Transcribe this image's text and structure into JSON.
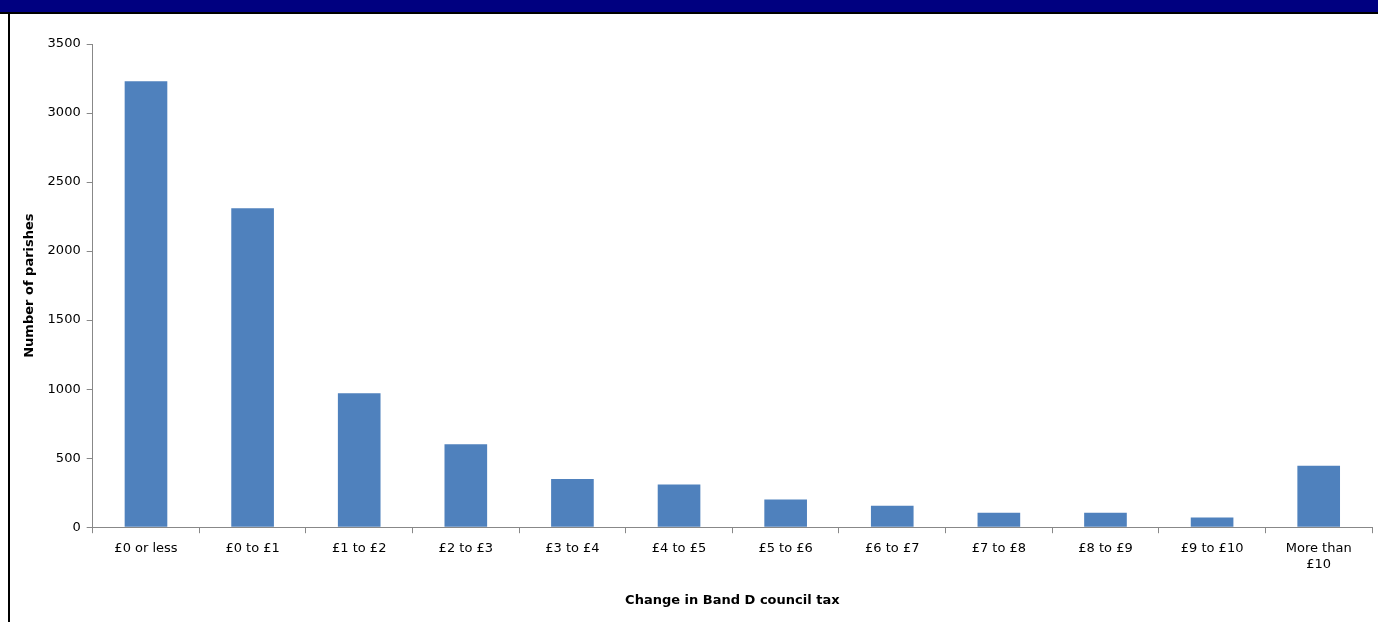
{
  "chart_data": {
    "type": "bar",
    "xlabel": "Change in Band D council tax",
    "ylabel": "Number of parishes",
    "categories": [
      "£0 or less",
      "£0 to £1",
      "£1 to £2",
      "£2 to £3",
      "£3 to £4",
      "£4 to £5",
      "£5 to £6",
      "£6 to £7",
      "£7 to £8",
      "£8 to £9",
      "£9 to £10",
      "More than £10"
    ],
    "values": [
      3230,
      2310,
      970,
      600,
      350,
      310,
      200,
      155,
      105,
      105,
      70,
      445
    ],
    "color": "#4f81bd",
    "ylim": [
      0,
      3500
    ],
    "yticks": [
      0,
      500,
      1000,
      1500,
      2000,
      2500,
      3000,
      3500
    ],
    "grid": false,
    "legend": false
  }
}
